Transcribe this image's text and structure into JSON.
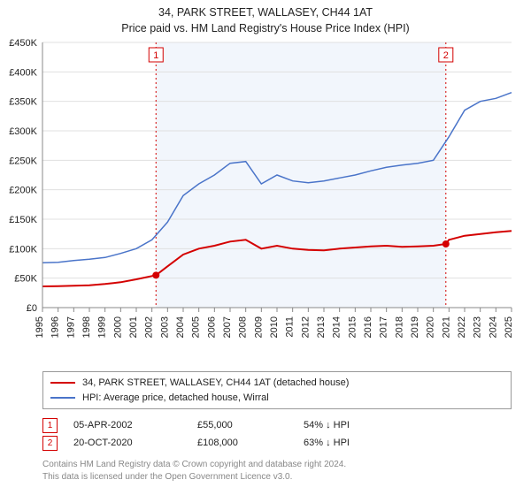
{
  "title_line1": "34, PARK STREET, WALLASEY, CH44 1AT",
  "title_line2": "Price paid vs. HM Land Registry's House Price Index (HPI)",
  "chart": {
    "type": "line",
    "background_color": "#ffffff",
    "band_color": "#f2f6fc",
    "grid_color": "#e0e0e0",
    "axis_color": "#888888",
    "text_color": "#222222",
    "tick_fontsize": 11,
    "ylim": [
      0,
      450000
    ],
    "ytick_step": 50000,
    "yticks": [
      "£0",
      "£50K",
      "£100K",
      "£150K",
      "£200K",
      "£250K",
      "£300K",
      "£350K",
      "£400K",
      "£450K"
    ],
    "xlim": [
      1995,
      2025
    ],
    "xticks": [
      1995,
      1996,
      1997,
      1998,
      1999,
      2000,
      2001,
      2002,
      2003,
      2004,
      2005,
      2006,
      2007,
      2008,
      2009,
      2010,
      2011,
      2012,
      2013,
      2014,
      2015,
      2016,
      2017,
      2018,
      2019,
      2020,
      2021,
      2022,
      2023,
      2024,
      2025
    ],
    "band_start": 2002.26,
    "band_end": 2020.8,
    "series": [
      {
        "name": "34, PARK STREET, WALLASEY, CH44 1AT (detached house)",
        "color": "#d40000",
        "line_width": 2,
        "points": [
          [
            1995,
            36000
          ],
          [
            1996,
            36500
          ],
          [
            1997,
            37000
          ],
          [
            1998,
            38000
          ],
          [
            1999,
            40000
          ],
          [
            2000,
            43000
          ],
          [
            2001,
            48000
          ],
          [
            2002.26,
            55000
          ],
          [
            2003,
            70000
          ],
          [
            2004,
            90000
          ],
          [
            2005,
            100000
          ],
          [
            2006,
            105000
          ],
          [
            2007,
            112000
          ],
          [
            2008,
            115000
          ],
          [
            2009,
            100000
          ],
          [
            2010,
            105000
          ],
          [
            2011,
            100000
          ],
          [
            2012,
            98000
          ],
          [
            2013,
            97000
          ],
          [
            2014,
            100000
          ],
          [
            2015,
            102000
          ],
          [
            2016,
            104000
          ],
          [
            2017,
            105000
          ],
          [
            2018,
            103000
          ],
          [
            2019,
            104000
          ],
          [
            2020,
            105000
          ],
          [
            2020.8,
            108000
          ],
          [
            2021,
            115000
          ],
          [
            2022,
            122000
          ],
          [
            2023,
            125000
          ],
          [
            2024,
            128000
          ],
          [
            2025,
            130000
          ]
        ]
      },
      {
        "name": "HPI: Average price, detached house, Wirral",
        "color": "#4a74c9",
        "line_width": 1.5,
        "points": [
          [
            1995,
            76000
          ],
          [
            1996,
            77000
          ],
          [
            1997,
            80000
          ],
          [
            1998,
            82000
          ],
          [
            1999,
            85000
          ],
          [
            2000,
            92000
          ],
          [
            2001,
            100000
          ],
          [
            2002,
            115000
          ],
          [
            2003,
            145000
          ],
          [
            2004,
            190000
          ],
          [
            2005,
            210000
          ],
          [
            2006,
            225000
          ],
          [
            2007,
            245000
          ],
          [
            2008,
            248000
          ],
          [
            2009,
            210000
          ],
          [
            2010,
            225000
          ],
          [
            2011,
            215000
          ],
          [
            2012,
            212000
          ],
          [
            2013,
            215000
          ],
          [
            2014,
            220000
          ],
          [
            2015,
            225000
          ],
          [
            2016,
            232000
          ],
          [
            2017,
            238000
          ],
          [
            2018,
            242000
          ],
          [
            2019,
            245000
          ],
          [
            2020,
            250000
          ],
          [
            2021,
            290000
          ],
          [
            2022,
            335000
          ],
          [
            2023,
            350000
          ],
          [
            2024,
            355000
          ],
          [
            2025,
            365000
          ]
        ]
      }
    ],
    "markers": [
      {
        "label": "1",
        "x": 2002.26,
        "y": 55000,
        "rule_color": "#d40000",
        "box_color": "#d40000"
      },
      {
        "label": "2",
        "x": 2020.8,
        "y": 108000,
        "rule_color": "#d40000",
        "box_color": "#d40000"
      }
    ]
  },
  "legend": {
    "series": [
      {
        "color": "#d40000",
        "label": "34, PARK STREET, WALLASEY, CH44 1AT (detached house)"
      },
      {
        "color": "#4a74c9",
        "label": "HPI: Average price, detached house, Wirral"
      }
    ],
    "marker_rows": [
      {
        "num": "1",
        "box_color": "#d40000",
        "date": "05-APR-2002",
        "price": "£55,000",
        "pct": "54% ↓ HPI"
      },
      {
        "num": "2",
        "box_color": "#d40000",
        "date": "20-OCT-2020",
        "price": "£108,000",
        "pct": "63% ↓ HPI"
      }
    ]
  },
  "footnote_line1": "Contains HM Land Registry data © Crown copyright and database right 2024.",
  "footnote_line2": "This data is licensed under the Open Government Licence v3.0."
}
